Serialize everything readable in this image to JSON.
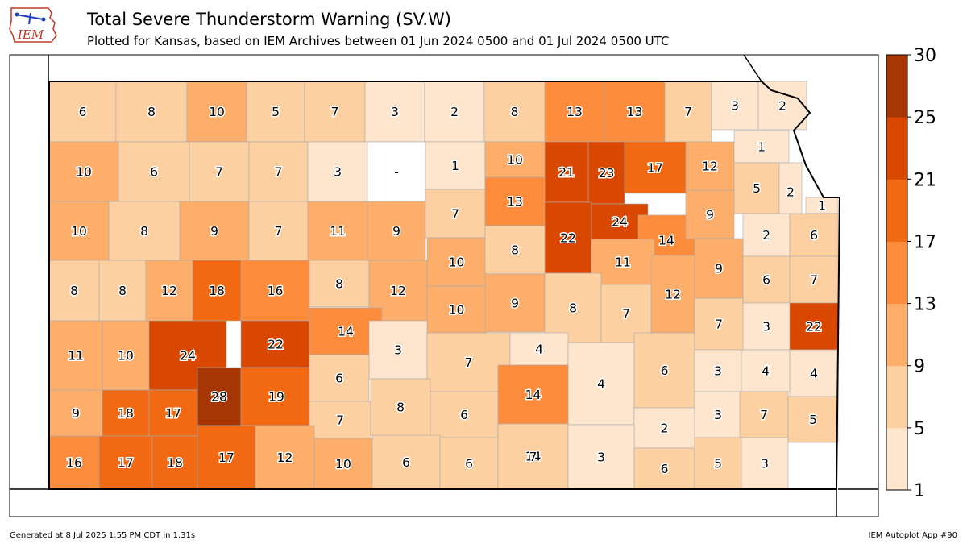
{
  "header": {
    "logo_text": "IEM",
    "title": "Total Severe Thunderstorm Warning (SV.W)",
    "subtitle": "Plotted for Kansas, based on IEM Archives  between 01 Jun 2024 0500 and 01 Jul 2024 0500 UTC"
  },
  "footer": {
    "left": "Generated at 8 Jul 2025 1:55 PM CDT in 1.31s",
    "right": "IEM Autoplot App #90"
  },
  "colorbar": {
    "ticks": [
      "1",
      "5",
      "9",
      "13",
      "17",
      "21",
      "25",
      "30"
    ],
    "colors": [
      "#fee6ce",
      "#fdd0a2",
      "#fdae6b",
      "#fd8d3c",
      "#f16913",
      "#d94801",
      "#a63603"
    ]
  },
  "colors": {
    "no_data": "#ffffff",
    "state_outline": "#000000",
    "county_border": "#aaaaaa"
  },
  "map": {
    "state": "Kansas",
    "counties": [
      {
        "value": "6"
      },
      {
        "value": "8"
      },
      {
        "value": "10"
      },
      {
        "value": "5"
      },
      {
        "value": "7"
      },
      {
        "value": "3"
      },
      {
        "value": "2"
      },
      {
        "value": "8"
      },
      {
        "value": "13"
      },
      {
        "value": "13"
      },
      {
        "value": "7"
      },
      {
        "value": "3"
      },
      {
        "value": "2"
      },
      {
        "value": "10"
      },
      {
        "value": "6"
      },
      {
        "value": "7"
      },
      {
        "value": "7"
      },
      {
        "value": "3"
      },
      {
        "value": "-"
      },
      {
        "value": "1"
      },
      {
        "value": "10"
      },
      {
        "value": "21"
      },
      {
        "value": "23"
      },
      {
        "value": "17"
      },
      {
        "value": "12"
      },
      {
        "value": "1"
      },
      {
        "value": "5"
      },
      {
        "value": "2"
      },
      {
        "value": "1"
      },
      {
        "value": "10"
      },
      {
        "value": "8"
      },
      {
        "value": "9"
      },
      {
        "value": "7"
      },
      {
        "value": "11"
      },
      {
        "value": "9"
      },
      {
        "value": "7"
      },
      {
        "value": "13"
      },
      {
        "value": "22"
      },
      {
        "value": "24"
      },
      {
        "value": "14"
      },
      {
        "value": "9"
      },
      {
        "value": "2"
      },
      {
        "value": "6"
      },
      {
        "value": "8"
      },
      {
        "value": "8"
      },
      {
        "value": "12"
      },
      {
        "value": "18"
      },
      {
        "value": "16"
      },
      {
        "value": "8"
      },
      {
        "value": "12"
      },
      {
        "value": "10"
      },
      {
        "value": "8"
      },
      {
        "value": "11"
      },
      {
        "value": "9"
      },
      {
        "value": "6"
      },
      {
        "value": "7"
      },
      {
        "value": "10"
      },
      {
        "value": "9"
      },
      {
        "value": "8"
      },
      {
        "value": "7"
      },
      {
        "value": "12"
      },
      {
        "value": "11"
      },
      {
        "value": "10"
      },
      {
        "value": "24"
      },
      {
        "value": "22"
      },
      {
        "value": "14"
      },
      {
        "value": "3"
      },
      {
        "value": "7"
      },
      {
        "value": "4"
      },
      {
        "value": "4"
      },
      {
        "value": "6"
      },
      {
        "value": "7"
      },
      {
        "value": "3"
      },
      {
        "value": "22"
      },
      {
        "value": "28"
      },
      {
        "value": "19"
      },
      {
        "value": "6"
      },
      {
        "value": "3"
      },
      {
        "value": "4"
      },
      {
        "value": "4"
      },
      {
        "value": "14"
      },
      {
        "value": "9"
      },
      {
        "value": "18"
      },
      {
        "value": "17"
      },
      {
        "value": "7"
      },
      {
        "value": "8"
      },
      {
        "value": "6"
      },
      {
        "value": "2"
      },
      {
        "value": "3"
      },
      {
        "value": "7"
      },
      {
        "value": "5"
      },
      {
        "value": "14"
      },
      {
        "value": "16"
      },
      {
        "value": "17"
      },
      {
        "value": "18"
      },
      {
        "value": "17"
      },
      {
        "value": "12"
      },
      {
        "value": "10"
      },
      {
        "value": "6"
      },
      {
        "value": "6"
      },
      {
        "value": "7"
      },
      {
        "value": "3"
      },
      {
        "value": "6"
      },
      {
        "value": "5"
      },
      {
        "value": "3"
      }
    ]
  }
}
